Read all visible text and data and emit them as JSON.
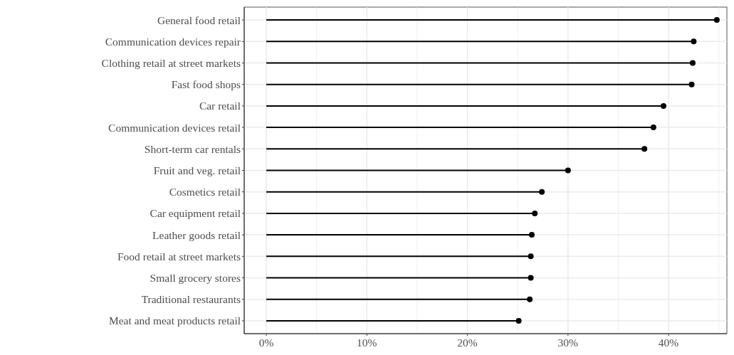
{
  "chart_data": {
    "type": "lollipop",
    "orientation": "horizontal",
    "categories": [
      "General food retail",
      "Communication devices repair",
      "Clothing retail at street markets",
      "Fast food shops",
      "Car retail",
      "Communication devices retail",
      "Short-term car rentals",
      "Fruit and veg. retail",
      "Cosmetics retail",
      "Car equipment retail",
      "Leather goods retail",
      "Food retail at street markets",
      "Small grocery stores",
      "Traditional restaurants",
      "Meat and meat products retail"
    ],
    "values": [
      44.8,
      42.5,
      42.4,
      42.3,
      39.5,
      38.5,
      37.6,
      30.0,
      27.4,
      26.7,
      26.4,
      26.3,
      26.3,
      26.2,
      25.1
    ],
    "color": "#000000",
    "xlim": [
      -2.2,
      45.8
    ],
    "xticks": [
      {
        "value": 0,
        "label": "0%"
      },
      {
        "value": 5,
        "label": null
      },
      {
        "value": 10,
        "label": "10%"
      },
      {
        "value": 15,
        "label": null
      },
      {
        "value": 20,
        "label": "20%"
      },
      {
        "value": 25,
        "label": null
      },
      {
        "value": 30,
        "label": "30%"
      },
      {
        "value": 35,
        "label": null
      },
      {
        "value": 40,
        "label": "40%"
      },
      {
        "value": 45,
        "label": null
      }
    ],
    "grid": true,
    "marker": "circle"
  }
}
